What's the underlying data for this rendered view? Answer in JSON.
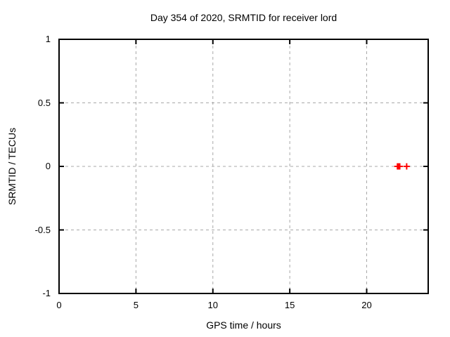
{
  "page": {
    "background": "#ffffff"
  },
  "chart_data": {
    "type": "scatter",
    "title": "Day 354 of 2020, SRMTID for receiver lord",
    "xlabel": "GPS time / hours",
    "ylabel": "SRMTID / TECUs",
    "xlim": [
      0,
      24
    ],
    "ylim": [
      -1,
      1
    ],
    "xticks": [
      0,
      5,
      10,
      15,
      20
    ],
    "yticks": [
      1,
      0.5,
      0,
      -0.5,
      -1
    ],
    "grid": true,
    "legend": "none",
    "series": [
      {
        "name": "SRMTID",
        "marker": "plus",
        "color": "#ff0000",
        "points": [
          [
            22.0,
            0
          ],
          [
            22.05,
            0
          ],
          [
            22.1,
            0
          ],
          [
            22.15,
            0
          ],
          [
            22.6,
            0
          ]
        ]
      }
    ],
    "colors": {
      "axis": "#000000",
      "grid": "#a8a8a8",
      "text": "#000000"
    }
  }
}
